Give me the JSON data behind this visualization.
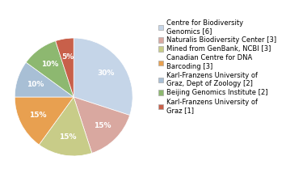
{
  "labels": [
    "Centre for Biodiversity\nGenomics [6]",
    "Naturalis Biodiversity Center [3]",
    "Mined from GenBank, NCBI [3]",
    "Canadian Centre for DNA\nBarcoding [3]",
    "Karl-Franzens University of\nGraz, Dept of Zoology [2]",
    "Beijing Genomics Institute [2]",
    "Karl-Franzens University of\nGraz [1]"
  ],
  "values": [
    30,
    15,
    15,
    15,
    10,
    10,
    5
  ],
  "colors": [
    "#c5d5e8",
    "#d9a8a0",
    "#c8cc88",
    "#e8a050",
    "#a8bfd5",
    "#8db870",
    "#c8604a"
  ],
  "startangle": 90,
  "pct_fontsize": 6.5,
  "legend_fontsize": 6.0
}
